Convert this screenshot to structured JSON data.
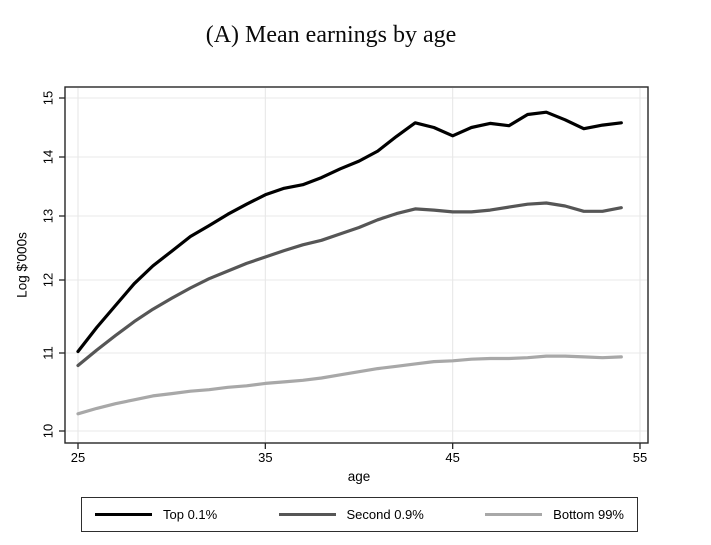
{
  "chart_data": {
    "type": "line",
    "title": "(A) Mean earnings by age",
    "xlabel": "age",
    "ylabel": "Log $'000s",
    "x_ticks": [
      25,
      35,
      45,
      55
    ],
    "y_ticks": [
      10,
      11,
      12,
      13,
      14,
      15
    ],
    "xlim": [
      24.3,
      55.5
    ],
    "ylim": [
      9.8,
      15.2
    ],
    "grid": true,
    "legend_position": "bottom",
    "x": [
      25,
      26,
      27,
      28,
      29,
      30,
      31,
      32,
      33,
      34,
      35,
      36,
      37,
      38,
      39,
      40,
      41,
      42,
      43,
      44,
      45,
      46,
      47,
      48,
      49,
      50,
      51,
      52,
      53,
      54
    ],
    "series": [
      {
        "name": "Top 0.1%",
        "color": "#000000",
        "values": [
          11.02,
          11.35,
          11.65,
          11.95,
          12.22,
          12.45,
          12.68,
          12.85,
          13.03,
          13.2,
          13.36,
          13.47,
          13.53,
          13.65,
          13.8,
          13.93,
          14.1,
          14.35,
          14.58,
          14.5,
          14.36,
          14.5,
          14.57,
          14.53,
          14.72,
          14.76,
          14.63,
          14.48,
          14.54,
          14.58
        ]
      },
      {
        "name": "Second 0.9%",
        "color": "#565656",
        "values": [
          10.84,
          11.04,
          11.24,
          11.43,
          11.6,
          11.75,
          11.89,
          12.02,
          12.14,
          12.26,
          12.36,
          12.46,
          12.55,
          12.62,
          12.72,
          12.82,
          12.94,
          13.04,
          13.12,
          13.1,
          13.07,
          13.07,
          13.1,
          13.15,
          13.2,
          13.22,
          13.17,
          13.08,
          13.08,
          13.14
        ]
      },
      {
        "name": "Bottom 99%",
        "color": "#a8a8a8",
        "values": [
          10.22,
          10.29,
          10.35,
          10.4,
          10.45,
          10.48,
          10.51,
          10.53,
          10.56,
          10.58,
          10.61,
          10.63,
          10.65,
          10.68,
          10.72,
          10.76,
          10.8,
          10.83,
          10.86,
          10.89,
          10.9,
          10.92,
          10.93,
          10.93,
          10.94,
          10.96,
          10.96,
          10.95,
          10.94,
          10.95
        ]
      }
    ]
  },
  "colors": {
    "grid": "#e8e8e8",
    "box_border": "#262626",
    "background": "#ffffff",
    "text": "#000000"
  }
}
